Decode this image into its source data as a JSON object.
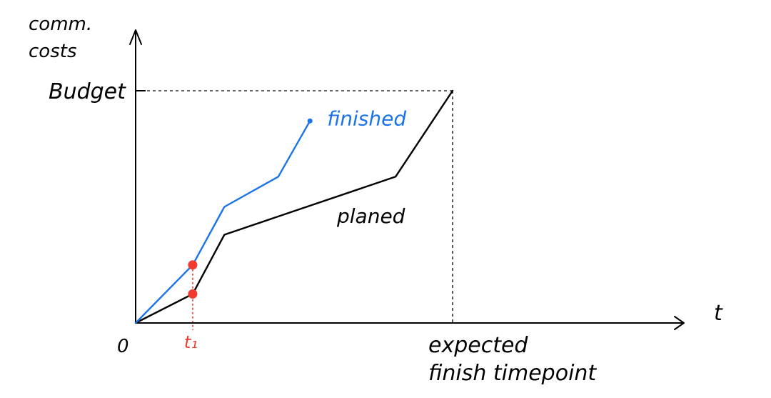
{
  "chart_data": {
    "type": "line",
    "ylabel_lines": [
      "comm.",
      "costs"
    ],
    "xlabel": "t",
    "origin_label": "0",
    "ytick_label": "Budget",
    "xtick_label_lines": [
      "expected",
      "finish timepoint"
    ],
    "marker_label": "t₁",
    "x_range": [
      0,
      10
    ],
    "y_range": [
      0,
      10
    ],
    "budget_value": 10,
    "expected_finish_x": 10,
    "t1_x": 1.8,
    "series": [
      {
        "name": "planed",
        "color": "#000000",
        "points": [
          [
            0,
            0
          ],
          [
            1.8,
            1.25
          ],
          [
            2.8,
            3.8
          ],
          [
            8.2,
            6.3
          ],
          [
            10,
            10
          ]
        ]
      },
      {
        "name": "finished",
        "color": "#1a73e8",
        "points": [
          [
            0,
            0
          ],
          [
            1.8,
            2.5
          ],
          [
            2.8,
            5.0
          ],
          [
            4.5,
            6.3
          ],
          [
            5.5,
            8.7
          ]
        ]
      }
    ],
    "markers": [
      {
        "series": "planed",
        "x": 1.8,
        "y": 1.25,
        "color": "#f03a2e"
      },
      {
        "series": "finished",
        "x": 1.8,
        "y": 2.5,
        "color": "#f03a2e"
      }
    ],
    "reference_color": "#f03a2e"
  }
}
